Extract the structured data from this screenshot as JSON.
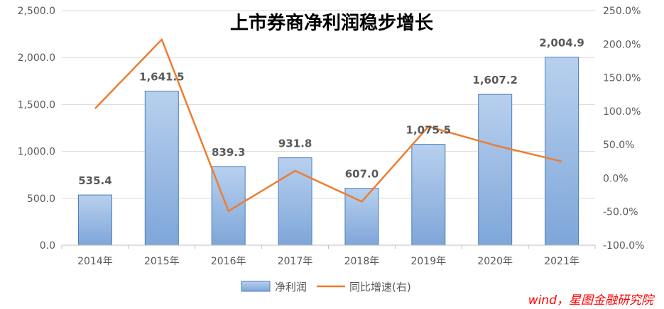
{
  "chart_data": {
    "type": "bar",
    "title": "上市券商净利润稳步增长",
    "categories": [
      "2014年",
      "2015年",
      "2016年",
      "2017年",
      "2018年",
      "2019年",
      "2020年",
      "2021年"
    ],
    "series": [
      {
        "name": "净利润",
        "type": "bar",
        "axis": "left",
        "values": [
          535.4,
          1641.5,
          839.3,
          931.8,
          607.0,
          1075.5,
          1607.2,
          2004.9
        ],
        "labels": [
          "535.4",
          "1,641.5",
          "839.3",
          "931.8",
          "607.0",
          "1,075.5",
          "1,607.2",
          "2,004.9"
        ],
        "color": "#8fb4e3"
      },
      {
        "name": "同比增速(右)",
        "type": "line",
        "axis": "right",
        "values": [
          104.0,
          207.0,
          -49.0,
          11.0,
          -35.0,
          77.0,
          49.0,
          25.0
        ],
        "color": "#ed7d31"
      }
    ],
    "y_left": {
      "ylim": [
        0,
        2500
      ],
      "ticks": [
        "0.0",
        "500.0",
        "1,000.0",
        "1,500.0",
        "2,000.0",
        "2,500.0"
      ]
    },
    "y_right": {
      "ylim": [
        -100,
        250
      ],
      "ticks": [
        "-100.0%",
        "-50.0%",
        "0.0%",
        "50.0%",
        "100.0%",
        "150.0%",
        "200.0%",
        "250.0%"
      ]
    },
    "grid": true,
    "legend_position": "bottom",
    "source_note": "wind，星图金融研究院"
  }
}
